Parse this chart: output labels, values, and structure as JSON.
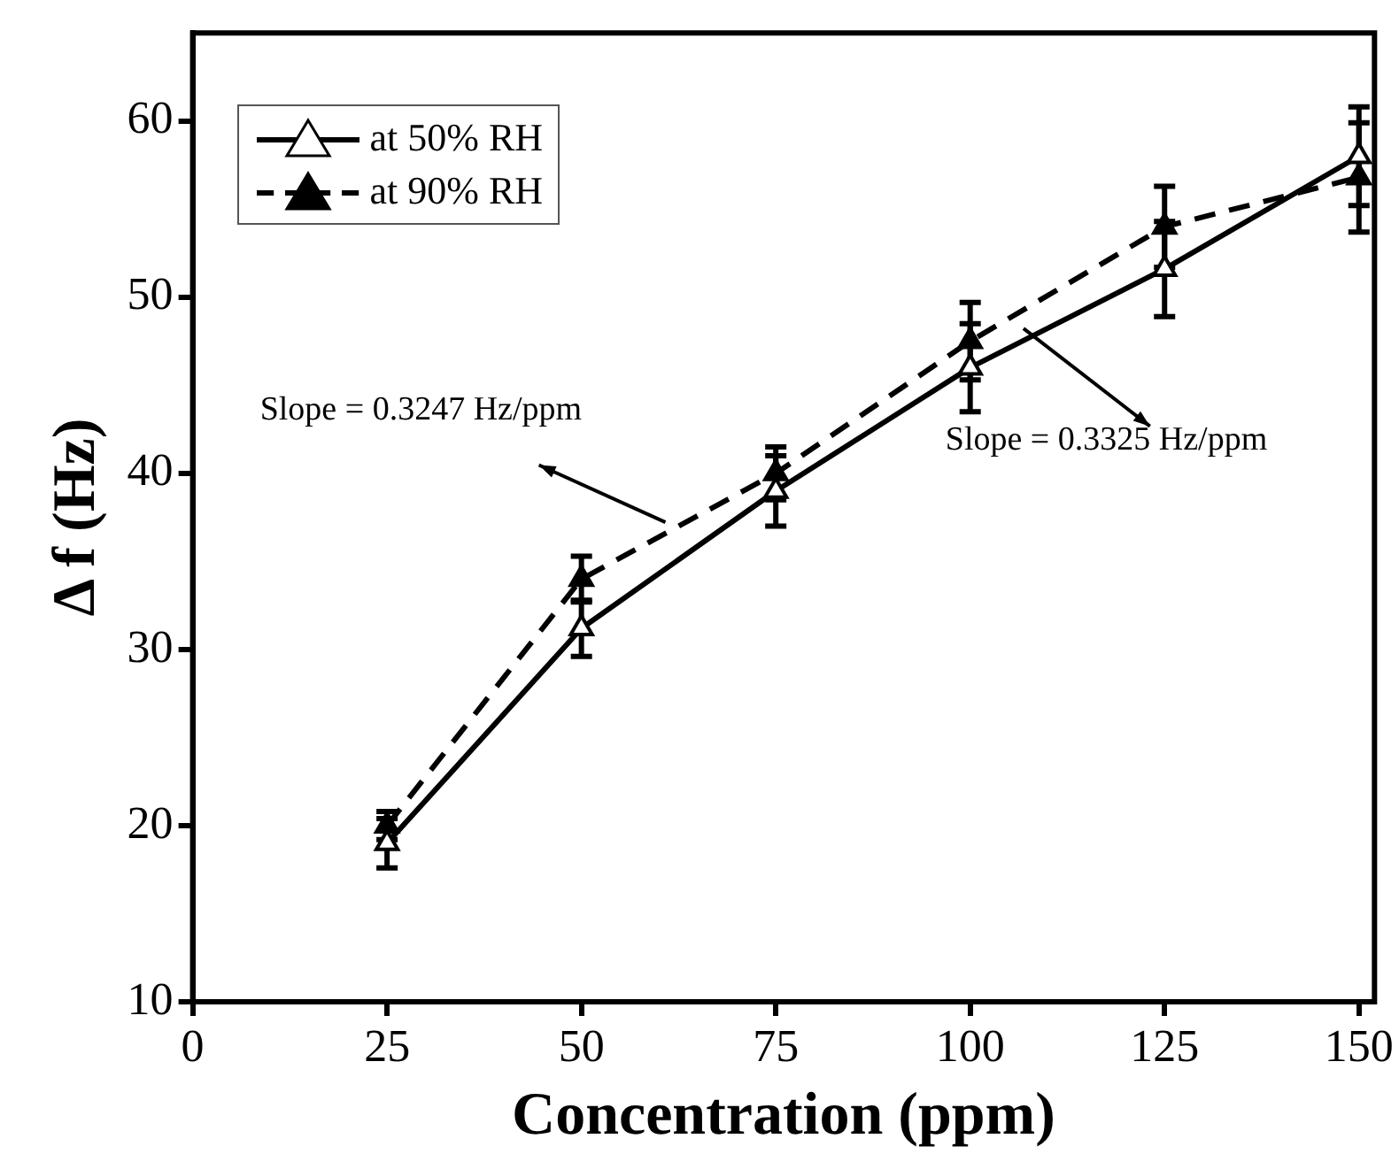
{
  "chart_data": {
    "type": "line",
    "xlabel": "Concentration (ppm)",
    "ylabel": "Δ f (Hz)",
    "x": [
      25,
      50,
      75,
      100,
      125,
      150
    ],
    "xlim": [
      0,
      152
    ],
    "xticks": [
      0,
      25,
      50,
      75,
      100,
      125,
      150
    ],
    "ylim": [
      10,
      65
    ],
    "yticks": [
      10,
      20,
      30,
      40,
      50,
      60
    ],
    "grid": false,
    "legend": "top left",
    "marker": "triangle",
    "series": [
      {
        "name": "at 50% RH",
        "color": "#000000",
        "line_style": "solid",
        "values": [
          19,
          31.2,
          39,
          46,
          51.6,
          58
        ],
        "errors": [
          1.4,
          1.6,
          2,
          2.5,
          2.7,
          2.8
        ]
      },
      {
        "name": "at 90% RH",
        "color": "#000000",
        "line_style": "dashed",
        "values": [
          20,
          34,
          40,
          47.5,
          54,
          56.8
        ],
        "errors": [
          0.8,
          1.3,
          1.5,
          2.2,
          2.3,
          3.1
        ]
      }
    ],
    "annotations": [
      "Slope = 0.3247 Hz/ppm",
      "Slope = 0.3325 Hz/ppm"
    ]
  }
}
